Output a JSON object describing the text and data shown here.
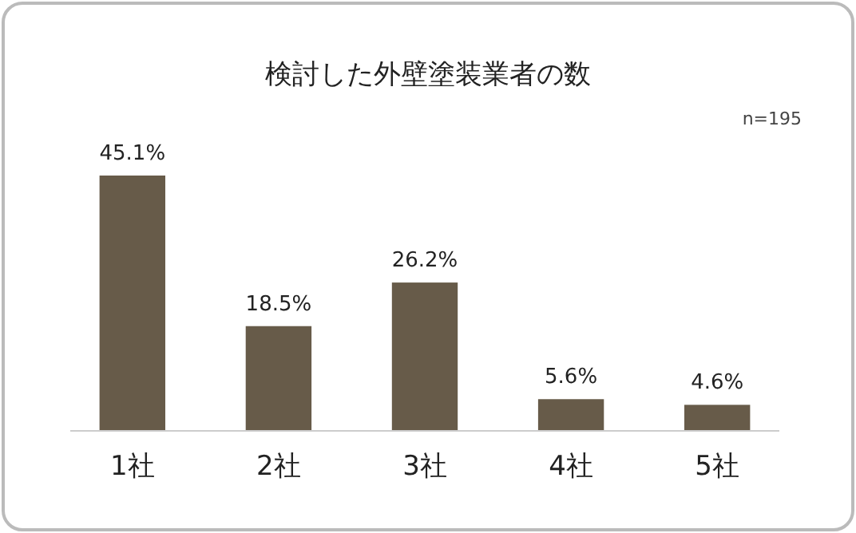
{
  "chart_data": {
    "type": "bar",
    "title": "検討した外壁塗装業者の数",
    "categories": [
      "1社",
      "2社",
      "3社",
      "4社",
      "5社"
    ],
    "values": [
      45.1,
      18.5,
      26.2,
      5.6,
      4.6
    ],
    "value_labels": [
      "45.1%",
      "18.5%",
      "26.2%",
      "5.6%",
      "4.6%"
    ],
    "color": "#675b49",
    "annotations": [
      "n=195"
    ]
  }
}
